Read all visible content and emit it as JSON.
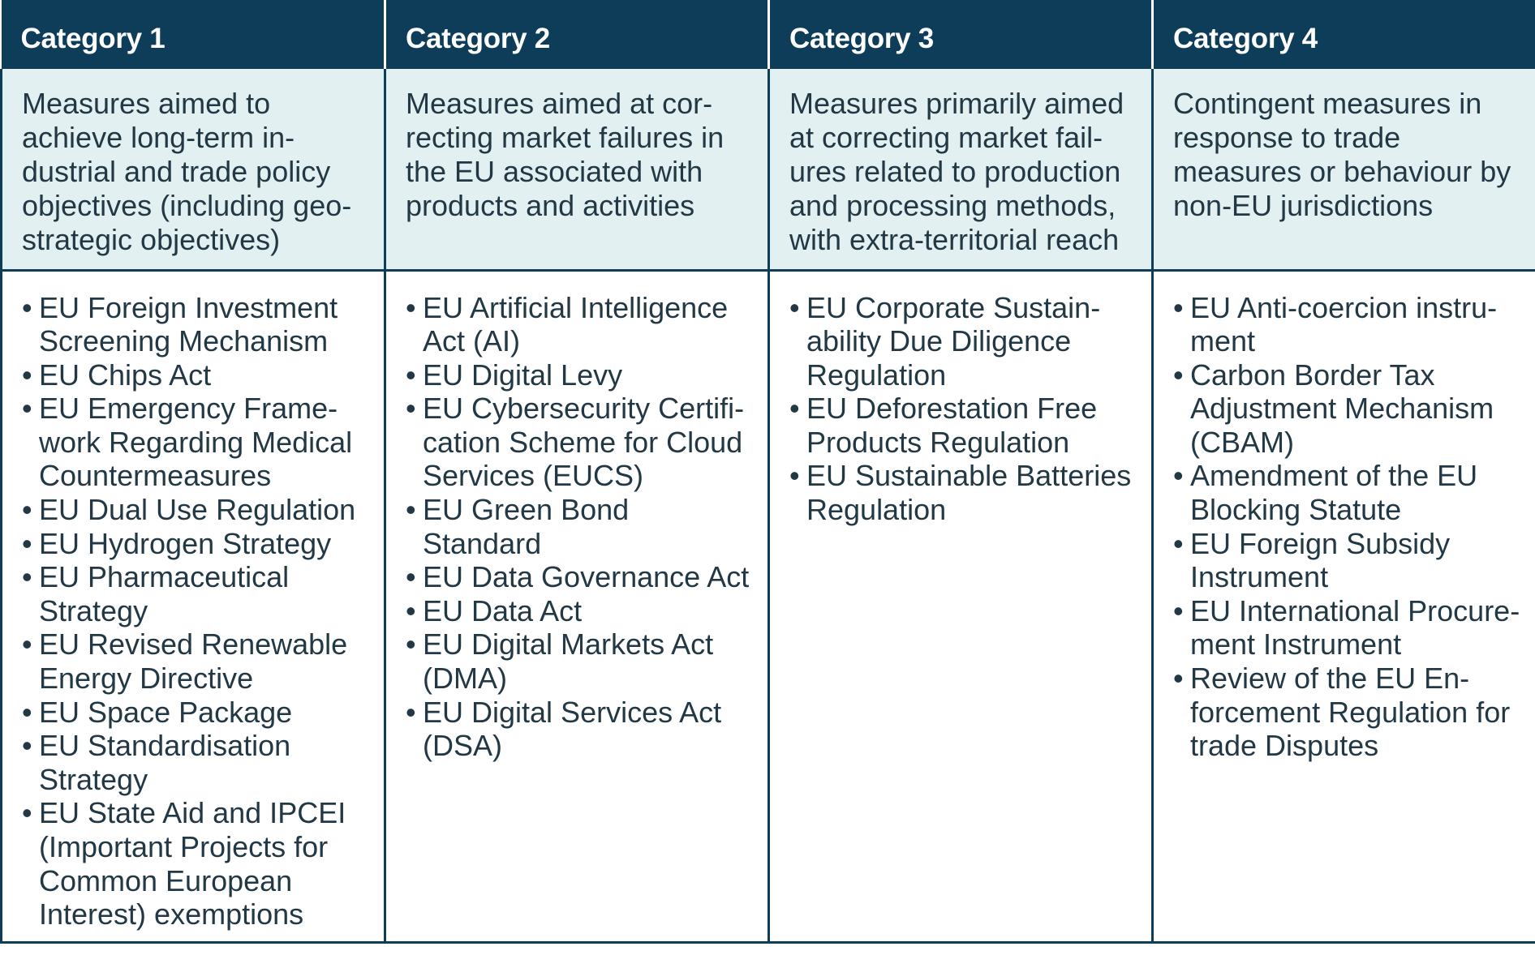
{
  "columns": [
    {
      "header": "Category 1",
      "description": "Measures aimed to achieve long-term in­dustrial and trade policy objectives (including geo­strategic objectives)",
      "items": [
        "EU Foreign Investment Screening Mechanism",
        "EU Chips Act",
        "EU Emergency Frame­work Regarding Medical Countermeasures",
        "EU Dual Use Regulation",
        "EU Hydrogen Strategy",
        "EU Pharmaceutical Strategy",
        "EU Revised Renewable Energy Directive",
        "EU Space Package",
        "EU Standardisation Strategy",
        "EU State Aid and IPCEI (Important Projects for Common European Interest) exemptions"
      ]
    },
    {
      "header": "Category 2",
      "description": "Measures aimed at cor­recting market failures in the EU associated with products and activities",
      "items": [
        "EU Artificial Intelligence Act (AI)",
        "EU Digital Levy",
        "EU Cybersecurity Certifi­cation Scheme for Cloud Services (EUCS)",
        "EU Green Bond Standard",
        "EU Data Governance Act",
        "EU Data Act",
        "EU Digital Markets Act (DMA)",
        "EU Digital Services Act (DSA)"
      ]
    },
    {
      "header": "Category 3",
      "description": "Measures primarily aimed at correcting market fail­ures related to production and processing methods, with extra-territorial reach",
      "items": [
        "EU Corporate Sustain­ability Due Diligence Regulation",
        "EU Deforestation Free Products Regulation",
        "EU Sustainable Batteries Regulation"
      ]
    },
    {
      "header": "Category 4",
      "description": "Contingent measures in response to trade measures or behaviour by non-EU jurisdictions",
      "items": [
        "EU Anti-coercion instru­ment",
        "Carbon Border Tax Adjustment Mechanism (CBAM)",
        "Amendment of the EU Blocking Statute",
        "EU Foreign Subsidy Instrument",
        "EU International Procure­ment Instrument",
        "Review of the EU En­forcement Regulation for trade Disputes"
      ]
    }
  ],
  "colors": {
    "header_bg": "#0e3d5a",
    "header_text": "#ffffff",
    "description_bg": "#e2f0f1",
    "body_text": "#233845",
    "border": "#0e3d5a"
  }
}
